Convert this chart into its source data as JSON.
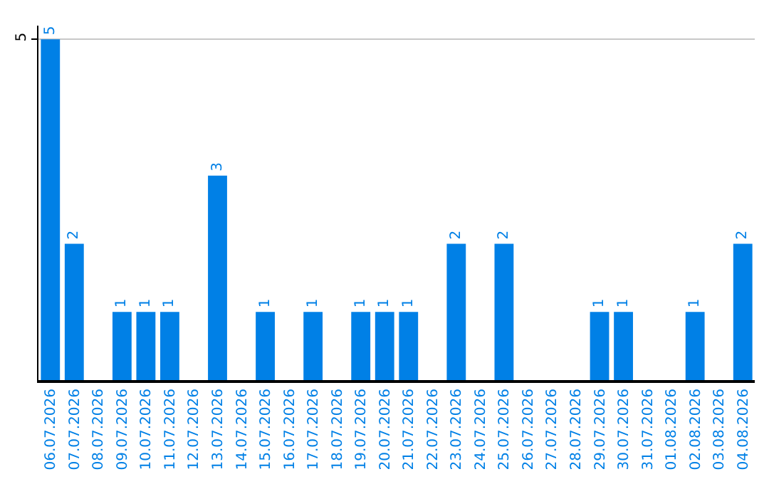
{
  "chart_data": {
    "type": "bar",
    "categories": [
      "06.07.2026",
      "07.07.2026",
      "08.07.2026",
      "09.07.2026",
      "10.07.2026",
      "11.07.2026",
      "12.07.2026",
      "13.07.2026",
      "14.07.2026",
      "15.07.2026",
      "16.07.2026",
      "17.07.2026",
      "18.07.2026",
      "19.07.2026",
      "20.07.2026",
      "21.07.2026",
      "22.07.2026",
      "23.07.2026",
      "24.07.2026",
      "25.07.2026",
      "26.07.2026",
      "27.07.2026",
      "28.07.2026",
      "29.07.2026",
      "30.07.2026",
      "31.07.2026",
      "01.08.2026",
      "02.08.2026",
      "03.08.2026",
      "04.08.2026"
    ],
    "values": [
      5,
      2,
      0,
      1,
      1,
      1,
      0,
      3,
      0,
      1,
      0,
      1,
      0,
      1,
      1,
      1,
      0,
      2,
      0,
      2,
      0,
      0,
      0,
      1,
      1,
      0,
      0,
      1,
      0,
      2
    ],
    "value_labels": [
      "5",
      "2",
      null,
      "1",
      "1",
      "1",
      null,
      "3",
      null,
      "1",
      null,
      "1",
      null,
      "1",
      "1",
      "1",
      null,
      "2",
      null,
      "2",
      null,
      null,
      null,
      "1",
      "1",
      null,
      null,
      "1",
      null,
      "2"
    ],
    "color": "#0080e6",
    "ylim": [
      0,
      5.2
    ],
    "yticks": [
      5
    ],
    "grid": "y"
  }
}
